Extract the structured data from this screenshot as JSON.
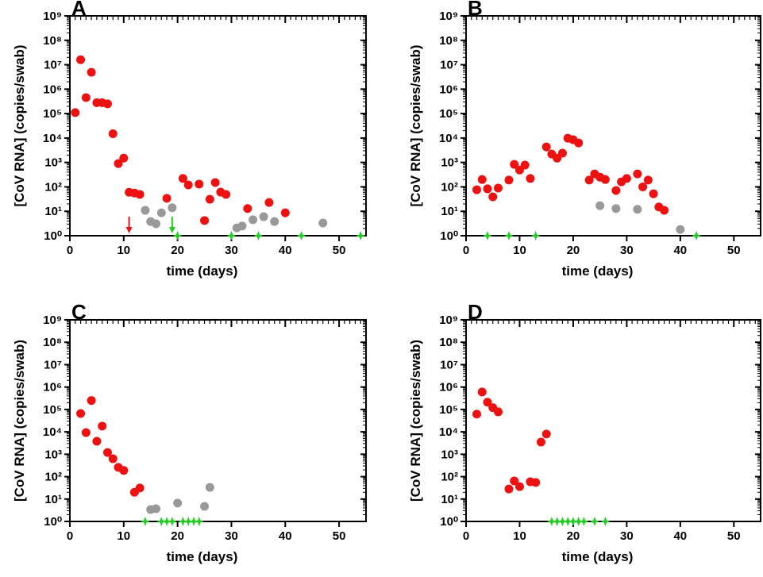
{
  "chart_data": [
    {
      "type": "scatter",
      "title": "A",
      "xlabel": "time (days)",
      "ylabel": "[CoV RNA] (copies/swab)",
      "log_y": true,
      "xlim": [
        0,
        55
      ],
      "ylim": [
        1,
        1000000000
      ],
      "xticks": [
        0,
        10,
        20,
        30,
        40,
        50
      ],
      "yticks": [
        {
          "value": 1,
          "label": "10⁰"
        },
        {
          "value": 10,
          "label": "10¹"
        },
        {
          "value": 100,
          "label": "10²"
        },
        {
          "value": 1000,
          "label": "10³"
        },
        {
          "value": 10000,
          "label": "10⁴"
        },
        {
          "value": 100000,
          "label": "10⁵"
        },
        {
          "value": 1000000,
          "label": "10⁶"
        },
        {
          "value": 10000000,
          "label": "10⁷"
        },
        {
          "value": 100000000,
          "label": "10⁸"
        },
        {
          "value": 1000000000,
          "label": "10⁹"
        }
      ],
      "series": [
        {
          "color": "#ee1111",
          "marker": "circle",
          "x": [
            1,
            2,
            3,
            4,
            5,
            6,
            7,
            8,
            9,
            10,
            11,
            12,
            13,
            18,
            21,
            22,
            24,
            25,
            26,
            27,
            28,
            29,
            33,
            37,
            40
          ],
          "values": [
            110000,
            16000000,
            450000,
            4900000,
            280000,
            280000,
            250000,
            15000,
            900,
            1500,
            60,
            56,
            49,
            34,
            220,
            120,
            130,
            4.2,
            31,
            150,
            61,
            49,
            13,
            23,
            8.7
          ]
        },
        {
          "color": "#999999",
          "marker": "circle",
          "x": [
            14,
            15,
            16,
            17,
            19,
            31,
            32,
            34,
            36,
            38,
            47
          ],
          "values": [
            11,
            3.8,
            3.1,
            8.7,
            14,
            2.1,
            2.5,
            4.5,
            6,
            3.8,
            3.3
          ]
        },
        {
          "color": "#22cc22",
          "marker": "star",
          "x": [
            20,
            30,
            35,
            43,
            54
          ],
          "values": [
            1,
            1,
            1,
            1,
            1
          ]
        }
      ],
      "arrows": [
        {
          "x": 11,
          "color": "#ee1111"
        },
        {
          "x": 19,
          "color": "#22cc22"
        }
      ]
    },
    {
      "type": "scatter",
      "title": "B",
      "xlabel": "time (days)",
      "ylabel": "[CoV RNA] (copies/swab)",
      "log_y": true,
      "xlim": [
        0,
        55
      ],
      "ylim": [
        1,
        1000000000
      ],
      "xticks": [
        0,
        10,
        20,
        30,
        40,
        50
      ],
      "yticks": [
        {
          "value": 1,
          "label": "10⁰"
        },
        {
          "value": 10,
          "label": "10¹"
        },
        {
          "value": 100,
          "label": "10²"
        },
        {
          "value": 1000,
          "label": "10³"
        },
        {
          "value": 10000,
          "label": "10⁴"
        },
        {
          "value": 100000,
          "label": "10⁵"
        },
        {
          "value": 1000000,
          "label": "10⁶"
        },
        {
          "value": 10000000,
          "label": "10⁷"
        },
        {
          "value": 100000000,
          "label": "10⁸"
        },
        {
          "value": 1000000000,
          "label": "10⁹"
        }
      ],
      "series": [
        {
          "color": "#ee1111",
          "marker": "circle",
          "x": [
            2,
            3,
            4,
            5,
            6,
            8,
            9,
            10,
            11,
            12,
            15,
            16,
            17,
            18,
            19,
            20,
            21,
            23,
            24,
            25,
            26,
            28,
            29,
            30,
            32,
            33,
            34,
            35,
            36,
            37
          ],
          "values": [
            76,
            200,
            83,
            39,
            89,
            190,
            830,
            490,
            780,
            220,
            4300,
            2200,
            1500,
            2400,
            9800,
            8500,
            6300,
            190,
            340,
            250,
            200,
            71,
            160,
            220,
            340,
            100,
            190,
            52,
            15,
            11
          ]
        },
        {
          "color": "#999999",
          "marker": "circle",
          "x": [
            25,
            28,
            32,
            40
          ],
          "values": [
            17,
            13,
            12,
            1.8
          ]
        },
        {
          "color": "#22cc22",
          "marker": "star",
          "x": [
            4,
            8,
            13,
            43
          ],
          "values": [
            1,
            1,
            1,
            1
          ]
        }
      ]
    },
    {
      "type": "scatter",
      "title": "C",
      "xlabel": "time (days)",
      "ylabel": "[CoV RNA] (copies/swab)",
      "log_y": true,
      "xlim": [
        0,
        55
      ],
      "ylim": [
        1,
        1000000000
      ],
      "xticks": [
        0,
        10,
        20,
        30,
        40,
        50
      ],
      "yticks": [
        {
          "value": 1,
          "label": "10⁰"
        },
        {
          "value": 10,
          "label": "10¹"
        },
        {
          "value": 100,
          "label": "10²"
        },
        {
          "value": 1000,
          "label": "10³"
        },
        {
          "value": 10000,
          "label": "10⁴"
        },
        {
          "value": 100000,
          "label": "10⁵"
        },
        {
          "value": 1000000,
          "label": "10⁶"
        },
        {
          "value": 10000000,
          "label": "10⁷"
        },
        {
          "value": 100000000,
          "label": "10⁸"
        },
        {
          "value": 1000000000,
          "label": "10⁹"
        }
      ],
      "series": [
        {
          "color": "#ee1111",
          "marker": "circle",
          "x": [
            2,
            3,
            4,
            5,
            6,
            7,
            8,
            9,
            10,
            12,
            13
          ],
          "values": [
            66000,
            9300,
            250000,
            3800,
            18000,
            1200,
            630,
            260,
            190,
            20,
            31
          ]
        },
        {
          "color": "#999999",
          "marker": "circle",
          "x": [
            15,
            16,
            20,
            25,
            26
          ],
          "values": [
            3.4,
            3.7,
            6.6,
            4.7,
            33
          ]
        },
        {
          "color": "#22cc22",
          "marker": "star",
          "x": [
            14,
            17,
            18,
            19,
            21,
            22,
            23,
            24
          ],
          "values": [
            1,
            1,
            1,
            1,
            1,
            1,
            1,
            1
          ]
        }
      ]
    },
    {
      "type": "scatter",
      "title": "D",
      "xlabel": "time (days)",
      "ylabel": "[CoV RNA] (copies/swab)",
      "log_y": true,
      "xlim": [
        0,
        55
      ],
      "ylim": [
        1,
        1000000000
      ],
      "xticks": [
        0,
        10,
        20,
        30,
        40,
        50
      ],
      "yticks": [
        {
          "value": 1,
          "label": "10⁰"
        },
        {
          "value": 10,
          "label": "10¹"
        },
        {
          "value": 100,
          "label": "10²"
        },
        {
          "value": 1000,
          "label": "10³"
        },
        {
          "value": 10000,
          "label": "10⁴"
        },
        {
          "value": 100000,
          "label": "10⁵"
        },
        {
          "value": 1000000,
          "label": "10⁶"
        },
        {
          "value": 10000000,
          "label": "10⁷"
        },
        {
          "value": 100000000,
          "label": "10⁸"
        },
        {
          "value": 1000000000,
          "label": "10⁹"
        }
      ],
      "series": [
        {
          "color": "#ee1111",
          "marker": "circle",
          "x": [
            2,
            3,
            4,
            5,
            6,
            8,
            9,
            10,
            12,
            13,
            14,
            15
          ],
          "values": [
            62000,
            600000,
            210000,
            120000,
            78000,
            28,
            64,
            36,
            59,
            55,
            3500,
            8000
          ]
        },
        {
          "color": "#22cc22",
          "marker": "star",
          "x": [
            16,
            17,
            18,
            19,
            20,
            21,
            22,
            24,
            26
          ],
          "values": [
            1,
            1,
            1,
            1,
            1,
            1,
            1,
            1,
            1
          ]
        }
      ]
    }
  ]
}
